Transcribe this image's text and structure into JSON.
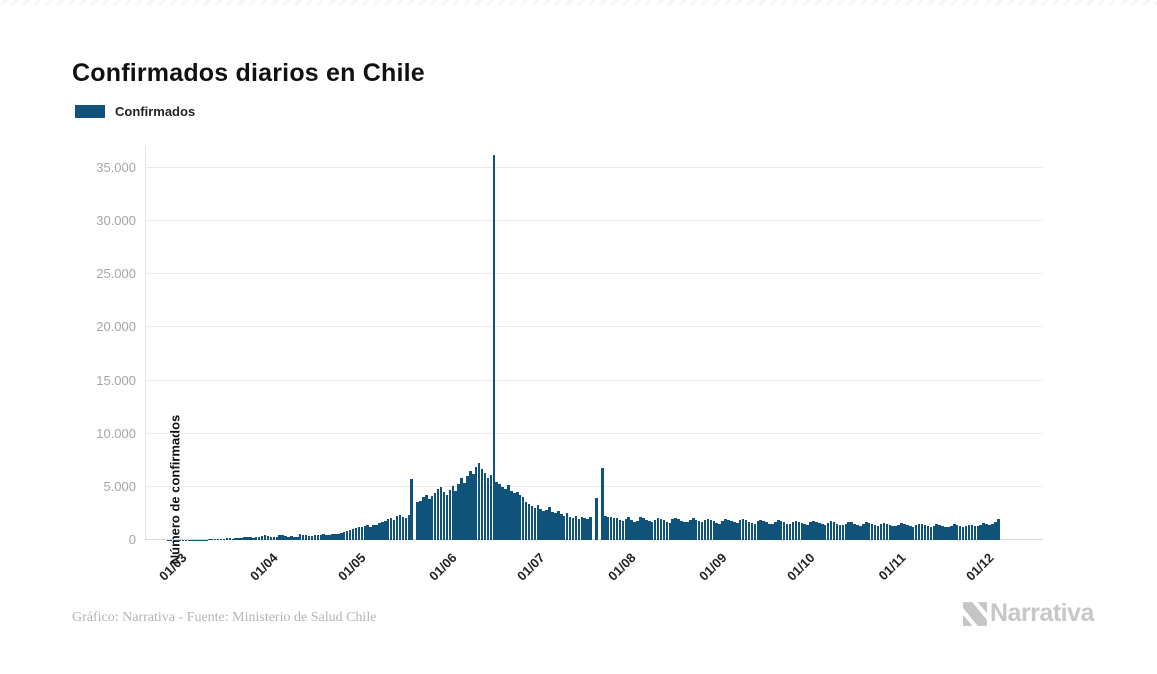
{
  "page": {
    "title": "Confirmados diarios en Chile"
  },
  "legend": {
    "label": "Confirmados",
    "color": "#0f537b"
  },
  "footer": {
    "credit": "Gráfico: Narrativa - Fuente: Ministerio de Salud Chile",
    "brand": "Narrativa"
  },
  "chart_data": {
    "type": "bar",
    "title": "Confirmados diarios en Chile",
    "series_name": "Confirmados",
    "xlabel": "",
    "ylabel": "Número de confirmados",
    "bar_color": "#0f537b",
    "grid": "horizontal",
    "legend_position": "top-left",
    "ylim": [
      0,
      37000
    ],
    "yticks": [
      {
        "value": 0,
        "label": "0"
      },
      {
        "value": 5000,
        "label": "5.000"
      },
      {
        "value": 10000,
        "label": "10.000"
      },
      {
        "value": 15000,
        "label": "15.000"
      },
      {
        "value": 20000,
        "label": "20.000"
      },
      {
        "value": 25000,
        "label": "25.000"
      },
      {
        "value": 30000,
        "label": "30.000"
      },
      {
        "value": 35000,
        "label": "35.000"
      }
    ],
    "xticks": [
      {
        "label": "01/03",
        "day": 0
      },
      {
        "label": "01/04",
        "day": 31
      },
      {
        "label": "01/05",
        "day": 61
      },
      {
        "label": "01/06",
        "day": 92
      },
      {
        "label": "01/07",
        "day": 122
      },
      {
        "label": "01/08",
        "day": 153
      },
      {
        "label": "01/09",
        "day": 184
      },
      {
        "label": "01/10",
        "day": 214
      },
      {
        "label": "01/11",
        "day": 245
      },
      {
        "label": "01/12",
        "day": 275
      }
    ],
    "values": [
      1,
      2,
      1,
      2,
      3,
      4,
      8,
      10,
      12,
      14,
      12,
      23,
      33,
      43,
      60,
      75,
      81,
      56,
      103,
      118,
      164,
      142,
      114,
      176,
      220,
      176,
      304,
      299,
      310,
      230,
      289,
      293,
      333,
      424,
      355,
      310,
      301,
      294,
      426,
      445,
      392,
      312,
      358,
      325,
      291,
      534,
      445,
      473,
      358,
      419,
      464,
      516,
      481,
      552,
      482,
      494,
      552,
      520,
      588,
      620,
      780,
      838,
      900,
      1028,
      1100,
      1228,
      1250,
      1320,
      1427,
      1211,
      1380,
      1450,
      1586,
      1700,
      1800,
      2000,
      2106,
      1900,
      2278,
      2353,
      2200,
      2100,
      2350,
      5700,
      0,
      3536,
      3709,
      4000,
      4200,
      3900,
      4100,
      4400,
      4800,
      5000,
      4500,
      4200,
      4700,
      5100,
      4600,
      5300,
      5800,
      5400,
      6000,
      6500,
      6200,
      6900,
      7200,
      6700,
      6300,
      5800,
      6100,
      36179,
      5500,
      5300,
      5000,
      4800,
      5200,
      4600,
      4400,
      4500,
      4200,
      4000,
      3600,
      3400,
      3200,
      3000,
      3300,
      2900,
      2700,
      2800,
      3100,
      2600,
      2500,
      2700,
      2400,
      2300,
      2500,
      2200,
      2100,
      2300,
      2000,
      2200,
      2100,
      2000,
      2200,
      0,
      3950,
      0,
      6780,
      2300,
      2200,
      2150,
      2100,
      2100,
      1900,
      1800,
      2000,
      2200,
      1850,
      1700,
      1800,
      2150,
      2050,
      1900,
      1750,
      1650,
      1900,
      2100,
      2000,
      1850,
      1700,
      1600,
      1950,
      2100,
      1950,
      1800,
      1700,
      1650,
      1900,
      2050,
      1900,
      1750,
      1700,
      1850,
      2000,
      1900,
      1750,
      1600,
      1550,
      1800,
      2000,
      1900,
      1800,
      1650,
      1600,
      1850,
      1950,
      1850,
      1700,
      1600,
      1550,
      1750,
      1900,
      1800,
      1700,
      1550,
      1500,
      1700,
      1850,
      1750,
      1650,
      1550,
      1500,
      1650,
      1800,
      1700,
      1600,
      1500,
      1450,
      1650,
      1800,
      1700,
      1600,
      1500,
      1450,
      1600,
      1750,
      1700,
      1550,
      1450,
      1400,
      1550,
      1700,
      1650,
      1500,
      1400,
      1350,
      1500,
      1650,
      1600,
      1500,
      1400,
      1350,
      1500,
      1600,
      1550,
      1450,
      1350,
      1300,
      1450,
      1600,
      1500,
      1400,
      1300,
      1250,
      1400,
      1550,
      1500,
      1400,
      1300,
      1250,
      1350,
      1500,
      1450,
      1350,
      1250,
      1200,
      1350,
      1500,
      1400,
      1300,
      1250,
      1300,
      1450,
      1400,
      1350,
      1300,
      1450,
      1600,
      1500,
      1400,
      1500,
      1700,
      1975
    ]
  }
}
